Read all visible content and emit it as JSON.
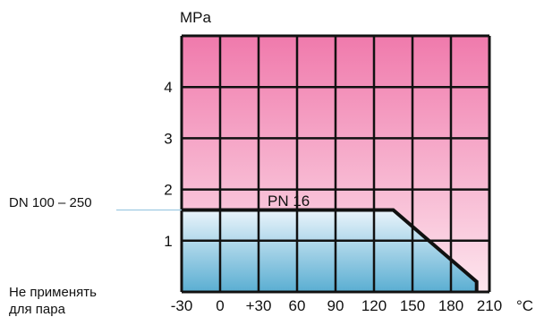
{
  "chart_data": {
    "type": "area",
    "title": "",
    "ylabel": "MPa",
    "xlabel": "°C",
    "x_ticks": [
      "-30",
      "0",
      "+30",
      "60",
      "90",
      "120",
      "150",
      "180",
      "210"
    ],
    "y_ticks": [
      "1",
      "2",
      "3",
      "4"
    ],
    "xlim": [
      -30,
      210
    ],
    "ylim": [
      0,
      5
    ],
    "grid": true,
    "series": [
      {
        "name": "PN 16",
        "x": [
          -30,
          135,
          200
        ],
        "y": [
          1.6,
          1.6,
          0.2
        ]
      }
    ],
    "annotations": {
      "left_label": "DN 100 – 250",
      "note_line1": "Не применять",
      "note_line2": "для пара"
    },
    "colors": {
      "background_top": "#f07aac",
      "background_bottom": "#fde6ee",
      "fill_top": "#eaf4fb",
      "fill_bottom": "#5aaed2",
      "grid": "#111111",
      "line": "#111111"
    }
  }
}
